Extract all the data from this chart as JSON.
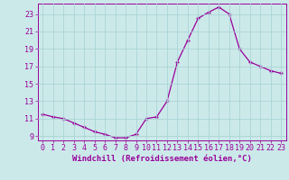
{
  "hours": [
    0,
    1,
    2,
    3,
    4,
    5,
    6,
    7,
    8,
    9,
    10,
    11,
    12,
    13,
    14,
    15,
    16,
    17,
    18,
    19,
    20,
    21,
    22,
    23
  ],
  "values": [
    11.5,
    11.2,
    11.0,
    10.5,
    10.0,
    9.5,
    9.2,
    8.8,
    8.8,
    9.2,
    11.0,
    11.2,
    13.0,
    17.5,
    20.0,
    22.5,
    23.2,
    23.8,
    23.0,
    19.0,
    17.5,
    17.0,
    16.5,
    16.2
  ],
  "line_color": "#990099",
  "marker": "+",
  "marker_size": 3.5,
  "marker_lw": 1.0,
  "background_color": "#cce9ea",
  "grid_color": "#aad4d6",
  "xlabel": "Windchill (Refroidissement éolien,°C)",
  "xlabel_fontsize": 6.5,
  "tick_fontsize": 6,
  "ylim": [
    8.5,
    24.2
  ],
  "xlim": [
    -0.5,
    23.5
  ],
  "yticks": [
    9,
    11,
    13,
    15,
    17,
    19,
    21,
    23
  ],
  "xticks": [
    0,
    1,
    2,
    3,
    4,
    5,
    6,
    7,
    8,
    9,
    10,
    11,
    12,
    13,
    14,
    15,
    16,
    17,
    18,
    19,
    20,
    21,
    22,
    23
  ]
}
